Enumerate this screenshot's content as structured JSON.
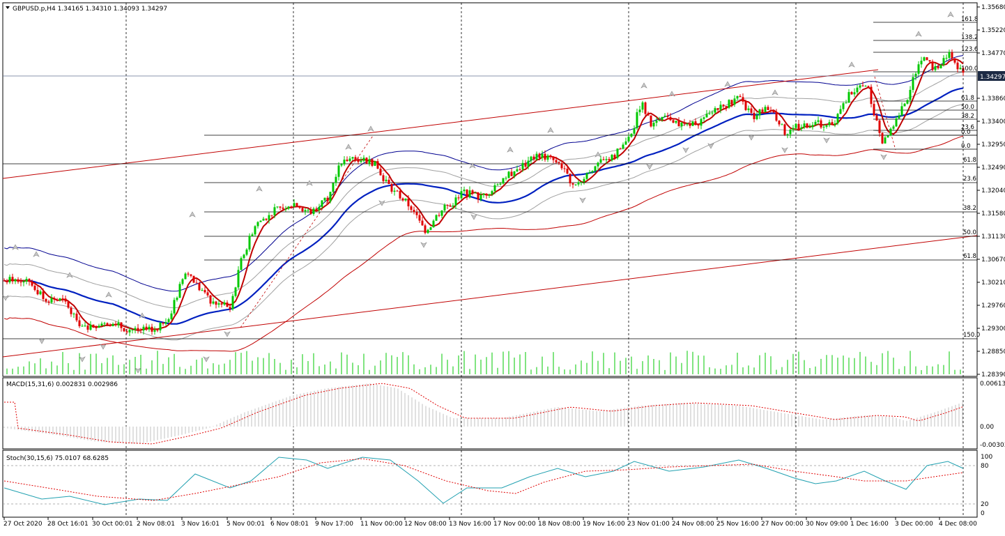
{
  "symbol_header": "GBPUSD.p,H4  1.34165 1.34310 1.34093 1.34297",
  "current_price": "1.34297",
  "price_axis": [
    "1.35680",
    "1.35220",
    "1.34770",
    "1.34297",
    "1.33860",
    "1.33400",
    "1.32950",
    "1.32490",
    "1.32040",
    "1.31580",
    "1.31130",
    "1.30670",
    "1.30210",
    "1.29760",
    "1.29300",
    "1.28850",
    "1.28390"
  ],
  "fib_upper": [
    "161.8",
    "138.2",
    "123.6",
    "100.0",
    "61.8",
    "50.0",
    "38.2",
    "23.6",
    "0.0",
    "0.0"
  ],
  "fib_lower": [
    "61.8",
    "23.6",
    "38.2",
    "50.0",
    "61.8",
    "150.0"
  ],
  "macd_header": "MACD(15,31,6) 0.002831 0.002986",
  "macd_axis": [
    "0.006138",
    "0.00",
    "-0.00303"
  ],
  "stoch_header": "Stoch(30,15,6) 75.0107 68.6285",
  "stoch_axis": [
    "100",
    "80",
    "20",
    "0"
  ],
  "time_axis": [
    "27 Oct 2020",
    "28 Oct 16:01",
    "30 Oct 00:01",
    "2 Nov 08:01",
    "3 Nov 16:01",
    "5 Nov 00:01",
    "6 Nov 08:01",
    "9 Nov 17:00",
    "11 Nov 00:00",
    "12 Nov 08:00",
    "13 Nov 16:00",
    "17 Nov 00:00",
    "18 Nov 08:00",
    "19 Nov 16:00",
    "23 Nov 01:00",
    "24 Nov 08:00",
    "25 Nov 16:00",
    "27 Nov 00:00",
    "30 Nov 09:00",
    "1 Dec 16:00",
    "3 Dec 00:00",
    "4 Dec 08:00"
  ],
  "colors": {
    "bull": "#00c800",
    "bear": "#e00000",
    "ma_blue": "#0020c0",
    "ma_red": "#c00000",
    "band_gray": "#a0a0a0",
    "band_blue": "#000090",
    "trend": "#c00000",
    "grid": "#000000",
    "macd_hist": "#c0c0c0",
    "macd_signal": "#e00000",
    "stoch_main": "#20a0b0",
    "stoch_signal": "#e00000"
  }
}
